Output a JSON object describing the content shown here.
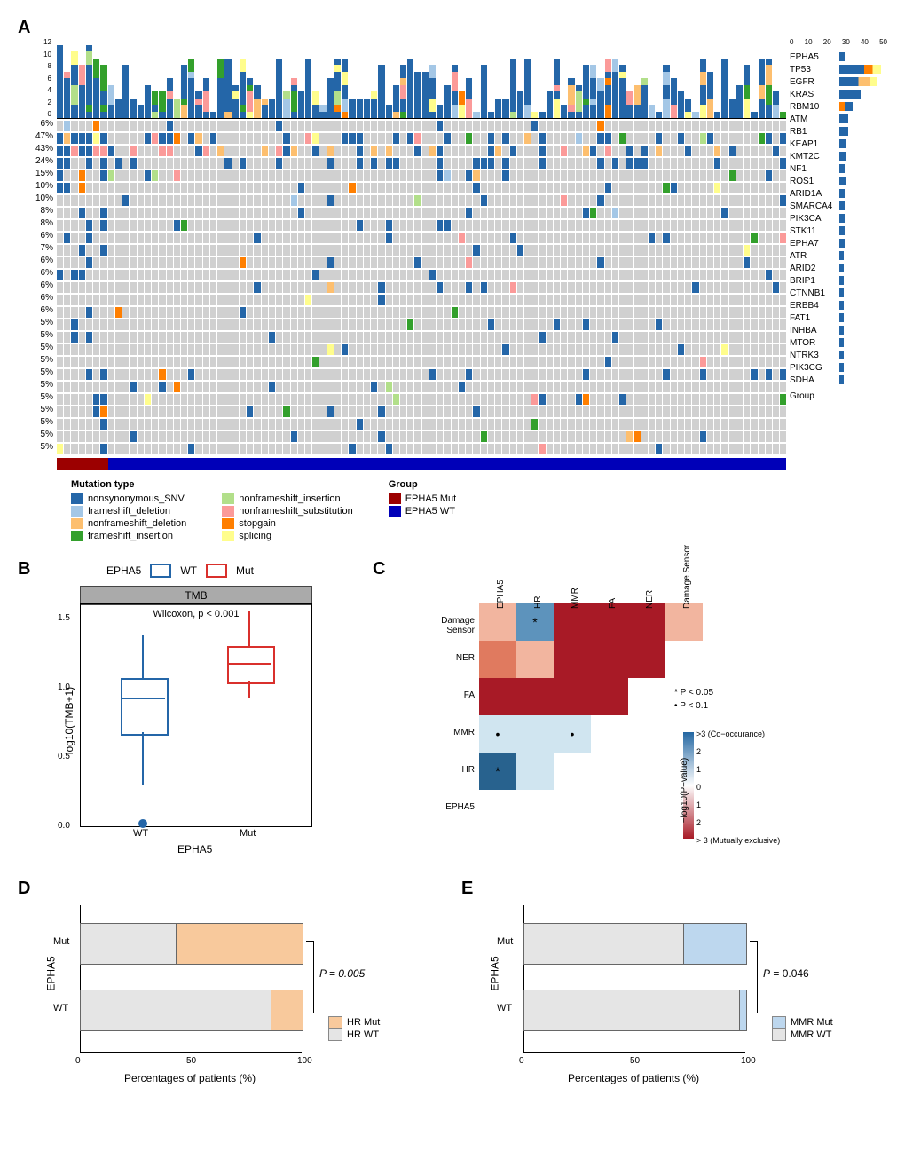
{
  "panelA": {
    "label": "A",
    "y_axis_top": [
      "12",
      "10",
      "8",
      "6",
      "4",
      "2",
      "0"
    ],
    "side_axis": [
      "0",
      "10",
      "20",
      "30",
      "40",
      "50"
    ],
    "genes": [
      {
        "pct": "6%",
        "name": "EPHA5",
        "side": 6
      },
      {
        "pct": "47%",
        "name": "TP53",
        "side": 47
      },
      {
        "pct": "43%",
        "name": "EGFR",
        "side": 43
      },
      {
        "pct": "24%",
        "name": "KRAS",
        "side": 24
      },
      {
        "pct": "15%",
        "name": "RBM10",
        "side": 15
      },
      {
        "pct": "10%",
        "name": "ATM",
        "side": 10
      },
      {
        "pct": "10%",
        "name": "RB1",
        "side": 10
      },
      {
        "pct": "8%",
        "name": "KEAP1",
        "side": 8
      },
      {
        "pct": "8%",
        "name": "KMT2C",
        "side": 8
      },
      {
        "pct": "6%",
        "name": "NF1",
        "side": 6
      },
      {
        "pct": "7%",
        "name": "ROS1",
        "side": 7
      },
      {
        "pct": "6%",
        "name": "ARID1A",
        "side": 6
      },
      {
        "pct": "6%",
        "name": "SMARCA4",
        "side": 6
      },
      {
        "pct": "6%",
        "name": "PIK3CA",
        "side": 6
      },
      {
        "pct": "6%",
        "name": "STK11",
        "side": 6
      },
      {
        "pct": "6%",
        "name": "EPHA7",
        "side": 6
      },
      {
        "pct": "5%",
        "name": "ATR",
        "side": 5
      },
      {
        "pct": "5%",
        "name": "ARID2",
        "side": 5
      },
      {
        "pct": "5%",
        "name": "BRIP1",
        "side": 5
      },
      {
        "pct": "5%",
        "name": "CTNNB1",
        "side": 5
      },
      {
        "pct": "5%",
        "name": "ERBB4",
        "side": 5
      },
      {
        "pct": "5%",
        "name": "FAT1",
        "side": 5
      },
      {
        "pct": "5%",
        "name": "INHBA",
        "side": 5
      },
      {
        "pct": "5%",
        "name": "MTOR",
        "side": 5
      },
      {
        "pct": "5%",
        "name": "NTRK3",
        "side": 5
      },
      {
        "pct": "5%",
        "name": "PIK3CG",
        "side": 5
      },
      {
        "pct": "5%",
        "name": "SDHA",
        "side": 5
      }
    ],
    "group_label": "Group",
    "n_samples": 100,
    "mut_count": 7,
    "colors": {
      "nonsynonymous_SNV": "#2466a8",
      "frameshift_deletion": "#a4c7e6",
      "nonframeshift_deletion": "#fdbf6f",
      "frameshift_insertion": "#33a02c",
      "nonframeshift_insertion": "#b2df8a",
      "nonframeshift_substitution": "#fb9a99",
      "stopgain": "#ff7f00",
      "splicing": "#fffd8c",
      "none": "#d0d0d0",
      "EPHA5_Mut": "#9c0000",
      "EPHA5_WT": "#0000b8"
    },
    "legend_mutation_title": "Mutation type",
    "legend_group_title": "Group",
    "legend_mutation_items": [
      {
        "key": "nonsynonymous_SNV",
        "label": "nonsynonymous_SNV"
      },
      {
        "key": "frameshift_deletion",
        "label": "frameshift_deletion"
      },
      {
        "key": "nonframeshift_deletion",
        "label": "nonframeshift_deletion"
      },
      {
        "key": "frameshift_insertion",
        "label": "frameshift_insertion"
      }
    ],
    "legend_mutation_items2": [
      {
        "key": "nonframeshift_insertion",
        "label": "nonframeshift_insertion"
      },
      {
        "key": "nonframeshift_substitution",
        "label": "nonframeshift_substitution"
      },
      {
        "key": "stopgain",
        "label": "stopgain"
      },
      {
        "key": "splicing",
        "label": "splicing"
      }
    ],
    "legend_group_items": [
      {
        "key": "EPHA5_Mut",
        "label": "EPHA5 Mut"
      },
      {
        "key": "EPHA5_WT",
        "label": "EPHA5 WT"
      }
    ]
  },
  "panelB": {
    "label": "B",
    "legend_title": "EPHA5",
    "legend_wt": "WT",
    "legend_mut": "Mut",
    "header": "TMB",
    "pvalue": "Wilcoxon, p < 0.001",
    "ylabel": "log10(TMB+1)",
    "xlabel": "EPHA5",
    "y_ticks": [
      "0.0",
      "0.5",
      "1.0",
      "1.5"
    ],
    "x_ticks": [
      "WT",
      "Mut"
    ],
    "wt_color": "#2466a8",
    "mut_color": "#d9302c",
    "wt_box": {
      "q1": 0.68,
      "med": 0.93,
      "q3": 1.07,
      "low": 0.3,
      "high": 1.38
    },
    "mut_box": {
      "q1": 1.05,
      "med": 1.18,
      "q3": 1.3,
      "low": 0.92,
      "high": 1.55
    },
    "outlier_y": 0.02
  },
  "panelC": {
    "label": "C",
    "cols": [
      "EPHA5",
      "HR",
      "MMR",
      "FA",
      "NER",
      "Damage Sensor"
    ],
    "rows": [
      "Damage Sensor",
      "NER",
      "FA",
      "MMR",
      "HR",
      "EPHA5"
    ],
    "cells": [
      {
        "r": 0,
        "c": 0,
        "color": "#f2b59f"
      },
      {
        "r": 0,
        "c": 1,
        "color": "#5d93bc",
        "star": "*"
      },
      {
        "r": 0,
        "c": 2,
        "color": "#a81a26"
      },
      {
        "r": 0,
        "c": 3,
        "color": "#a81a26"
      },
      {
        "r": 0,
        "c": 4,
        "color": "#a81a26"
      },
      {
        "r": 0,
        "c": 5,
        "color": "#f2b59f"
      },
      {
        "r": 1,
        "c": 0,
        "color": "#e07a5f"
      },
      {
        "r": 1,
        "c": 1,
        "color": "#f2b59f"
      },
      {
        "r": 1,
        "c": 2,
        "color": "#a81a26"
      },
      {
        "r": 1,
        "c": 3,
        "color": "#a81a26"
      },
      {
        "r": 1,
        "c": 4,
        "color": "#a81a26"
      },
      {
        "r": 2,
        "c": 0,
        "color": "#a81a26"
      },
      {
        "r": 2,
        "c": 1,
        "color": "#a81a26"
      },
      {
        "r": 2,
        "c": 2,
        "color": "#a81a26"
      },
      {
        "r": 2,
        "c": 3,
        "color": "#a81a26"
      },
      {
        "r": 3,
        "c": 0,
        "color": "#d0e5f0",
        "star": "•"
      },
      {
        "r": 3,
        "c": 1,
        "color": "#d0e5f0"
      },
      {
        "r": 3,
        "c": 2,
        "color": "#d0e5f0",
        "star": "•"
      },
      {
        "r": 4,
        "c": 0,
        "color": "#28628e",
        "star": "*"
      },
      {
        "r": 4,
        "c": 1,
        "color": "#d0e5f0"
      }
    ],
    "sig_labels": [
      "* P < 0.05",
      "• P < 0.1"
    ],
    "gradient_label": "−log10(P−value)",
    "gradient_ticks": [
      ">3 (Co−occurance)",
      "2",
      "1",
      "0",
      "1",
      "2",
      "> 3 (Mutually exclusive)"
    ],
    "gradient_colors": [
      "#2367a2",
      "#ffffff",
      "#a81a26"
    ]
  },
  "panelD": {
    "label": "D",
    "ylabel": "EPHA5",
    "xlabel": "Percentages of patients (%)",
    "pvalue": "P = 0.005",
    "categories": [
      "Mut",
      "WT"
    ],
    "x_ticks": [
      "0",
      "50",
      "100"
    ],
    "mut_hr_mut_pct": 57,
    "wt_hr_mut_pct": 14,
    "colors": {
      "HR_Mut": "#f8c99c",
      "HR_WT": "#e5e5e5"
    },
    "legend": [
      {
        "label": "HR Mut",
        "key": "HR_Mut"
      },
      {
        "label": "HR WT",
        "key": "HR_WT"
      }
    ]
  },
  "panelE": {
    "label": "E",
    "ylabel": "EPHA5",
    "xlabel": "Percentages of patients (%)",
    "pvalue": "P = 0.046",
    "categories": [
      "Mut",
      "WT"
    ],
    "x_ticks": [
      "0",
      "50",
      "100"
    ],
    "mut_mmr_mut_pct": 28,
    "wt_mmr_mut_pct": 3,
    "colors": {
      "MMR_Mut": "#bdd7ee",
      "MMR_WT": "#e5e5e5"
    },
    "legend": [
      {
        "label": "MMR Mut",
        "key": "MMR_Mut"
      },
      {
        "label": "MMR WT",
        "key": "MMR_WT"
      }
    ]
  }
}
